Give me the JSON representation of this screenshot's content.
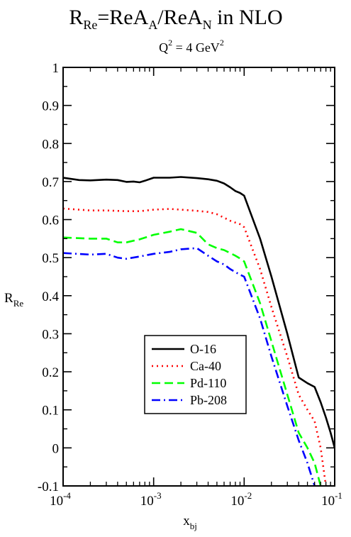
{
  "chart_data": {
    "type": "line",
    "title": {
      "base": "R",
      "sub1": "Re",
      "mid": "=ReA",
      "sub2": "A",
      "mid2": "/ReA",
      "sub3": "N",
      "tail": " in NLO"
    },
    "subtitle": {
      "base": "Q",
      "sup1": "2",
      "mid": " = 4 GeV",
      "sup2": "2"
    },
    "xlabel": {
      "base": "x",
      "sub": "bj"
    },
    "ylabel": {
      "base": "R",
      "sub": "Re"
    },
    "xscale": "log",
    "xlim": [
      0.0001,
      0.1
    ],
    "ylim": [
      -0.1,
      1
    ],
    "xticks": [
      {
        "value": 0.0001,
        "base": "10",
        "exp": "-4"
      },
      {
        "value": 0.001,
        "base": "10",
        "exp": "-3"
      },
      {
        "value": 0.01,
        "base": "10",
        "exp": "-2"
      },
      {
        "value": 0.1,
        "base": "10",
        "exp": "-1"
      }
    ],
    "yticks": [
      {
        "value": -0.1,
        "label": "-0.1"
      },
      {
        "value": 0,
        "label": "0"
      },
      {
        "value": 0.1,
        "label": "0.1"
      },
      {
        "value": 0.2,
        "label": "0.2"
      },
      {
        "value": 0.3,
        "label": "0.3"
      },
      {
        "value": 0.4,
        "label": "0.4"
      },
      {
        "value": 0.5,
        "label": "0.5"
      },
      {
        "value": 0.6,
        "label": "0.6"
      },
      {
        "value": 0.7,
        "label": "0.7"
      },
      {
        "value": 0.8,
        "label": "0.8"
      },
      {
        "value": 0.9,
        "label": "0.9"
      },
      {
        "value": 1,
        "label": "1"
      }
    ],
    "grid": false,
    "legend_position": "lower-center",
    "series": [
      {
        "name": "O-16",
        "color": "#000000",
        "dash": "solid",
        "x": [
          0.0001,
          0.00015,
          0.0002,
          0.0003,
          0.0004,
          0.0005,
          0.0006,
          0.0007,
          0.0008,
          0.001,
          0.0015,
          0.002,
          0.003,
          0.004,
          0.005,
          0.006,
          0.007,
          0.008,
          0.009,
          0.01,
          0.015,
          0.02,
          0.03,
          0.04,
          0.05,
          0.06,
          0.07,
          0.08,
          0.09,
          0.1
        ],
        "y": [
          0.71,
          0.704,
          0.703,
          0.705,
          0.704,
          0.699,
          0.7,
          0.698,
          0.702,
          0.71,
          0.71,
          0.712,
          0.709,
          0.706,
          0.702,
          0.695,
          0.685,
          0.675,
          0.67,
          0.663,
          0.55,
          0.45,
          0.3,
          0.185,
          0.17,
          0.16,
          0.12,
          0.08,
          0.04,
          0.0
        ]
      },
      {
        "name": "Ca-40",
        "color": "#ff0000",
        "dash": "dot",
        "x": [
          0.0001,
          0.0002,
          0.0003,
          0.0005,
          0.0007,
          0.001,
          0.0015,
          0.002,
          0.003,
          0.004,
          0.005,
          0.006,
          0.007,
          0.008,
          0.009,
          0.01,
          0.015,
          0.02,
          0.03,
          0.04,
          0.05,
          0.06,
          0.07,
          0.08
        ],
        "y": [
          0.629,
          0.624,
          0.624,
          0.622,
          0.622,
          0.626,
          0.628,
          0.626,
          0.623,
          0.62,
          0.614,
          0.605,
          0.597,
          0.592,
          0.588,
          0.58,
          0.47,
          0.37,
          0.24,
          0.14,
          0.1,
          0.07,
          0.0,
          -0.1
        ]
      },
      {
        "name": "Pd-110",
        "color": "#00ff00",
        "dash": "dash",
        "x": [
          0.0001,
          0.0002,
          0.0003,
          0.0004,
          0.0005,
          0.0007,
          0.001,
          0.0015,
          0.002,
          0.003,
          0.004,
          0.005,
          0.006,
          0.007,
          0.008,
          0.009,
          0.01,
          0.015,
          0.02,
          0.03,
          0.04,
          0.05,
          0.06,
          0.07
        ],
        "y": [
          0.553,
          0.55,
          0.55,
          0.54,
          0.54,
          0.548,
          0.56,
          0.568,
          0.575,
          0.565,
          0.535,
          0.525,
          0.52,
          0.512,
          0.505,
          0.498,
          0.49,
          0.38,
          0.28,
          0.14,
          0.04,
          0.0,
          -0.04,
          -0.1
        ]
      },
      {
        "name": "Pb-208",
        "color": "#0000ff",
        "dash": "dashdot",
        "x": [
          0.0001,
          0.0002,
          0.0003,
          0.0004,
          0.0005,
          0.0007,
          0.001,
          0.0015,
          0.002,
          0.003,
          0.004,
          0.005,
          0.006,
          0.007,
          0.008,
          0.009,
          0.01,
          0.015,
          0.02,
          0.03,
          0.04,
          0.05,
          0.06
        ],
        "y": [
          0.512,
          0.508,
          0.51,
          0.5,
          0.497,
          0.503,
          0.51,
          0.515,
          0.522,
          0.525,
          0.505,
          0.49,
          0.482,
          0.47,
          0.462,
          0.455,
          0.45,
          0.34,
          0.24,
          0.11,
          0.02,
          -0.04,
          -0.1
        ]
      }
    ]
  }
}
